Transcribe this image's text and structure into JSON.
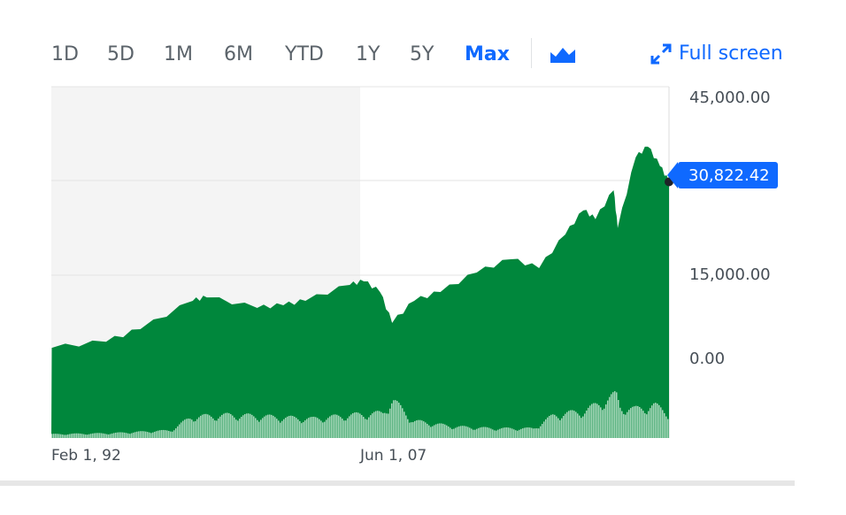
{
  "toolbar": {
    "ranges": [
      "1D",
      "5D",
      "1M",
      "6M",
      "YTD",
      "1Y",
      "5Y",
      "Max"
    ],
    "active_range": "Max",
    "chart_type_icon": "mountain-chart-icon",
    "fullscreen_label": "Full screen",
    "fullscreen_icon": "expand-arrows-icon"
  },
  "colors": {
    "accent": "#0f69ff",
    "area": "#00873c",
    "volume": "#a9d8bb",
    "shade": "#f4f4f4"
  },
  "chart_data": {
    "type": "area",
    "title": "",
    "xlabel": "",
    "ylabel": "",
    "x_tick_labels": [
      "Feb 1, 92",
      "Jun 1, 07"
    ],
    "y_tick_labels": [
      "45,000.00",
      "15,000.00",
      "0.00"
    ],
    "y_ticks": [
      45000,
      15000,
      0
    ],
    "current_price_label": "30,822.42",
    "current_price": 30822.42,
    "x_range": [
      1992.08,
      2022.75
    ],
    "grid": true,
    "series": [
      {
        "name": "Price",
        "x": [
          1992.1,
          1994.8,
          1996.5,
          1999.1,
          1999.8,
          2002.3,
          2003.6,
          2004.7,
          2006.9,
          2007.6,
          2008.4,
          2009.0,
          2010.1,
          2011.4,
          2013.2,
          2014.9,
          2016.3,
          2017.6,
          2018.5,
          2019.1,
          2020.0,
          2020.2,
          2021.1,
          2021.7,
          2022.3,
          2022.75
        ],
        "values": [
          1900,
          3000,
          5270,
          10370,
          11000,
          9100,
          9570,
          10370,
          13250,
          13880,
          11970,
          6380,
          10370,
          11970,
          15450,
          17700,
          16200,
          21900,
          26000,
          24500,
          29400,
          23000,
          35000,
          36800,
          33500,
          30822.42
        ]
      }
    ],
    "volume": {
      "x": [
        1992.1,
        1995,
        1998,
        1999,
        2001,
        2003,
        2005,
        2007,
        2008.5,
        2009,
        2010,
        2012,
        2014,
        2016,
        2017,
        2018.5,
        2020.1,
        2020.3,
        2021,
        2022,
        2022.7
      ],
      "values": [
        4,
        5,
        8,
        22,
        24,
        22,
        20,
        24,
        26,
        40,
        18,
        12,
        10,
        10,
        24,
        28,
        45,
        32,
        30,
        34,
        26
      ]
    }
  }
}
